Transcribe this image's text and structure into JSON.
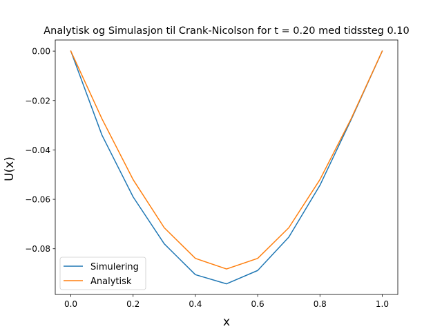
{
  "chart_data": {
    "type": "line",
    "title": "Analytisk og Simulasjon til Crank-Nicolson for t = 0.20 med tidssteg 0.10",
    "xlabel": "x",
    "ylabel": "U(x)",
    "xlim": [
      -0.05,
      1.05
    ],
    "ylim": [
      -0.0985,
      0.0045
    ],
    "xticks": [
      0.0,
      0.2,
      0.4,
      0.6,
      0.8,
      1.0
    ],
    "xtick_labels": [
      "0.0",
      "0.2",
      "0.4",
      "0.6",
      "0.8",
      "1.0"
    ],
    "yticks": [
      0.0,
      -0.02,
      -0.04,
      -0.06,
      -0.08
    ],
    "ytick_labels": [
      "0.00",
      "−0.02",
      "−0.04",
      "−0.06",
      "−0.08"
    ],
    "grid": false,
    "legend_position": "lower-left",
    "x": [
      0.0,
      0.1,
      0.2,
      0.3,
      0.4,
      0.5,
      0.6,
      0.7,
      0.8,
      0.9,
      1.0
    ],
    "series": [
      {
        "name": "Simulering",
        "color": "#1f77b4",
        "values": [
          0.0,
          -0.034,
          -0.059,
          -0.078,
          -0.0905,
          -0.0942,
          -0.0888,
          -0.0753,
          -0.0543,
          -0.0278,
          0.0
        ]
      },
      {
        "name": "Analytisk",
        "color": "#ff7f0e",
        "values": [
          0.0,
          -0.0274,
          -0.052,
          -0.0715,
          -0.0839,
          -0.0882,
          -0.0839,
          -0.0715,
          -0.052,
          -0.0274,
          0.0
        ]
      }
    ]
  }
}
